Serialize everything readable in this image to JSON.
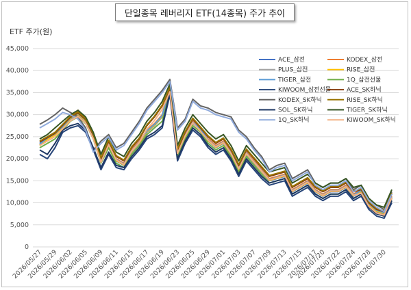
{
  "chart_data": {
    "type": "line",
    "title": "단일종목 레버리지 ETF(14종목) 주가 추이",
    "ylabel": "ETF 주가(원)",
    "xlabel": "",
    "ylim": [
      0,
      45000
    ],
    "yticks": [
      "0",
      "5,000",
      "10,000",
      "15,000",
      "20,000",
      "25,000",
      "30,000",
      "35,000",
      "40,000",
      "45,000"
    ],
    "grid": true,
    "legend_position": "right",
    "x_tick_labels": [
      "2026/05/27",
      "2026/05/29",
      "2026/06/02",
      "2026/06/05",
      "2026/06/09",
      "2026/06/11",
      "2026/06/15",
      "2026/06/17",
      "2026/06/19",
      "2026/06/23",
      "2026/06/25",
      "2026/06/29",
      "2026/07/01",
      "2026/07/03",
      "2026/07/07",
      "2026/07/09",
      "2026/07/13",
      "2026/07/15",
      "2026/07/17",
      "2026/07/20",
      "2026/07/22",
      "2026/07/24",
      "2026/07/28",
      "2026/07/30"
    ],
    "x": [
      "2026/05/27",
      "2026/05/28",
      "2026/05/29",
      "2026/06/01",
      "2026/06/02",
      "2026/06/04",
      "2026/06/05",
      "2026/06/08",
      "2026/06/09",
      "2026/06/10",
      "2026/06/11",
      "2026/06/12",
      "2026/06/15",
      "2026/06/16",
      "2026/06/17",
      "2026/06/18",
      "2026/06/19",
      "2026/06/22",
      "2026/06/23",
      "2026/06/24",
      "2026/06/25",
      "2026/06/26",
      "2026/06/29",
      "2026/06/30",
      "2026/07/01",
      "2026/07/02",
      "2026/07/03",
      "2026/07/06",
      "2026/07/07",
      "2026/07/08",
      "2026/07/09",
      "2026/07/10",
      "2026/07/13",
      "2026/07/14",
      "2026/07/15",
      "2026/07/16",
      "2026/07/17",
      "2026/07/20",
      "2026/07/21",
      "2026/07/22",
      "2026/07/23",
      "2026/07/24",
      "2026/07/27",
      "2026/07/28",
      "2026/07/29",
      "2026/07/30",
      "2026/07/31"
    ],
    "series": [
      {
        "name": "ACE_삼전",
        "color": "#4472c4",
        "values": [
          23500,
          24500,
          25500,
          27000,
          29000,
          30000,
          28500,
          25000,
          19500,
          23000,
          19500,
          18500,
          21500,
          23500,
          26000,
          27500,
          29500,
          36000,
          21000,
          25000,
          28000,
          26500,
          24000,
          22500,
          23500,
          21000,
          17500,
          21000,
          19000,
          17000,
          15000,
          15500,
          16000,
          12500,
          13500,
          14500,
          12500,
          11500,
          12500,
          12500,
          13500,
          11500,
          12500,
          9500,
          8000,
          7500,
          11000
        ]
      },
      {
        "name": "KODEX_삼전",
        "color": "#ed7d31",
        "values": [
          23000,
          24500,
          25500,
          27500,
          29500,
          31000,
          29000,
          25500,
          20000,
          23500,
          20000,
          19000,
          22000,
          24000,
          26500,
          28000,
          30000,
          36500,
          21500,
          25500,
          28500,
          27000,
          24500,
          23000,
          24000,
          21500,
          18000,
          21500,
          19500,
          17500,
          15500,
          16000,
          16500,
          13000,
          14000,
          15000,
          13000,
          12000,
          13000,
          13000,
          14000,
          12000,
          13000,
          10000,
          8500,
          8000,
          11500
        ]
      },
      {
        "name": "PLUS_삼전",
        "color": "#a5a5a5",
        "values": [
          23200,
          24600,
          25600,
          27200,
          29200,
          30200,
          28700,
          25200,
          19700,
          23200,
          19700,
          18700,
          21700,
          23700,
          26200,
          27700,
          29700,
          36200,
          21200,
          25200,
          28200,
          26700,
          24200,
          22700,
          23700,
          21200,
          17700,
          21200,
          19200,
          17200,
          15200,
          15700,
          16200,
          12700,
          13700,
          14700,
          12700,
          11700,
          12700,
          12700,
          13700,
          11700,
          12700,
          9700,
          8200,
          7700,
          11200
        ]
      },
      {
        "name": "RISE_삼전",
        "color": "#ffc000",
        "values": [
          23100,
          24400,
          25400,
          27100,
          29100,
          30100,
          28600,
          25100,
          19600,
          23100,
          19600,
          18600,
          21600,
          23600,
          26100,
          27600,
          29600,
          36100,
          21100,
          25100,
          28100,
          26600,
          24100,
          22600,
          23600,
          21100,
          17600,
          21100,
          19100,
          17100,
          15100,
          15600,
          16100,
          12600,
          13600,
          14600,
          12600,
          11600,
          12600,
          12600,
          13600,
          11600,
          12600,
          9600,
          8100,
          7600,
          11100
        ]
      },
      {
        "name": "TIGER_삼전",
        "color": "#5b9bd5",
        "values": [
          23300,
          24700,
          25700,
          27300,
          29300,
          30300,
          28800,
          25300,
          19800,
          23300,
          19800,
          18800,
          21800,
          23800,
          26300,
          27800,
          29800,
          36300,
          21300,
          25300,
          28300,
          26800,
          24300,
          22800,
          23800,
          21300,
          17800,
          21300,
          19300,
          17300,
          15300,
          15800,
          16300,
          12800,
          13800,
          14800,
          12800,
          11800,
          12800,
          12800,
          13800,
          11800,
          12800,
          9800,
          8300,
          7800,
          11300
        ]
      },
      {
        "name": "1Q_삼전선물",
        "color": "#70ad47",
        "values": [
          22500,
          23500,
          24500,
          26500,
          28500,
          29500,
          28000,
          24500,
          19000,
          22500,
          19000,
          18000,
          21000,
          23000,
          25500,
          27000,
          28500,
          35000,
          20500,
          24500,
          27500,
          26000,
          23500,
          22000,
          23000,
          20500,
          17000,
          20500,
          18500,
          16500,
          14500,
          15000,
          15500,
          12000,
          13000,
          14000,
          12000,
          11000,
          12000,
          12000,
          13000,
          11000,
          12000,
          9000,
          7500,
          7000,
          10500
        ]
      },
      {
        "name": "KIWOOM_삼전선물",
        "color": "#264478",
        "values": [
          21000,
          20000,
          22500,
          26000,
          27000,
          27500,
          26000,
          22000,
          17500,
          21000,
          18000,
          17500,
          20000,
          22000,
          24500,
          25500,
          27000,
          34500,
          19500,
          23500,
          26500,
          25000,
          22500,
          21000,
          22000,
          19500,
          16000,
          19500,
          17500,
          15500,
          14000,
          14500,
          15000,
          11500,
          12500,
          13500,
          11500,
          10500,
          11500,
          11500,
          12500,
          10500,
          11500,
          8500,
          7000,
          6500,
          10000
        ]
      },
      {
        "name": "ACE_SK하닉",
        "color": "#843c0c",
        "values": [
          23800,
          24800,
          25800,
          27600,
          29400,
          30400,
          28900,
          25400,
          20000,
          24000,
          20500,
          19500,
          22500,
          24500,
          27500,
          29500,
          32000,
          36000,
          22000,
          26000,
          29000,
          27000,
          25000,
          23500,
          24500,
          22000,
          18500,
          22000,
          20000,
          18000,
          16000,
          16500,
          17000,
          13500,
          14500,
          15500,
          13500,
          12500,
          13500,
          13500,
          14500,
          12500,
          13000,
          10000,
          8500,
          8000,
          12000
        ]
      },
      {
        "name": "KODEX_SK하닉",
        "color": "#636363",
        "values": [
          27800,
          28800,
          30000,
          31500,
          30500,
          29500,
          27000,
          22000,
          24000,
          25500,
          22500,
          23500,
          26000,
          28500,
          31500,
          33500,
          35500,
          38000,
          27000,
          29000,
          33500,
          32000,
          31500,
          30500,
          30000,
          29500,
          26500,
          25000,
          22500,
          20500,
          17500,
          18500,
          19000,
          15500,
          16500,
          17500,
          14500,
          13500,
          14500,
          14500,
          15500,
          13000,
          14000,
          11000,
          9500,
          8500,
          12500
        ]
      },
      {
        "name": "RISE_SK하닉",
        "color": "#997300",
        "values": [
          24000,
          25000,
          26000,
          27800,
          29600,
          30600,
          29100,
          25600,
          20200,
          24200,
          20700,
          19700,
          22700,
          24700,
          27700,
          29700,
          32200,
          36200,
          22200,
          26200,
          29200,
          27200,
          25200,
          23700,
          24700,
          22200,
          18700,
          22200,
          20200,
          18200,
          16200,
          16700,
          17200,
          13700,
          14700,
          15700,
          13700,
          12700,
          13700,
          13700,
          14700,
          12700,
          13200,
          10200,
          8700,
          8200,
          12200
        ]
      },
      {
        "name": "SOL_SK하닉",
        "color": "#1f3864",
        "values": [
          22000,
          21000,
          23500,
          26500,
          27500,
          28000,
          26500,
          22500,
          18000,
          21500,
          18500,
          18000,
          20500,
          22500,
          25000,
          26000,
          27500,
          35000,
          20000,
          24000,
          27000,
          25500,
          23000,
          21500,
          22500,
          20000,
          16500,
          20000,
          18000,
          16000,
          14500,
          15000,
          15500,
          12000,
          13000,
          14000,
          12000,
          11000,
          12000,
          12000,
          13000,
          11000,
          12000,
          9000,
          7500,
          7000,
          10500
        ]
      },
      {
        "name": "TIGER_SK하닉",
        "color": "#375623",
        "values": [
          24500,
          25500,
          27000,
          28500,
          30000,
          31000,
          29500,
          26000,
          21000,
          25000,
          21500,
          20500,
          23500,
          25500,
          28500,
          30500,
          33000,
          37000,
          23000,
          27000,
          30000,
          28000,
          26000,
          24500,
          25500,
          23000,
          19500,
          23000,
          21000,
          19000,
          17000,
          17500,
          18000,
          14500,
          15500,
          16500,
          14500,
          13500,
          14500,
          14500,
          15500,
          13500,
          14000,
          11000,
          9500,
          9000,
          13000
        ]
      },
      {
        "name": "1Q_SK하닉",
        "color": "#8faadc",
        "values": [
          27000,
          28000,
          29000,
          30500,
          30000,
          29000,
          26500,
          21500,
          23500,
          25000,
          22000,
          23000,
          25500,
          28000,
          31000,
          33000,
          35000,
          37500,
          26500,
          28500,
          33000,
          31500,
          31000,
          30000,
          29500,
          29000,
          26000,
          24500,
          22000,
          20000,
          17000,
          18000,
          18500,
          15000,
          16000,
          17000,
          14000,
          13000,
          14000,
          14000,
          15000,
          12500,
          13500,
          10500,
          9000,
          8000,
          12000
        ]
      },
      {
        "name": "KIWOOM_SK하닉",
        "color": "#f4b183",
        "values": [
          23000,
          24000,
          25000,
          26800,
          28600,
          29600,
          28100,
          24600,
          19200,
          23200,
          19700,
          18700,
          21700,
          23700,
          26700,
          28700,
          31200,
          35200,
          21200,
          25200,
          28200,
          26200,
          24200,
          22700,
          23700,
          21200,
          17700,
          21200,
          19200,
          17200,
          15200,
          15700,
          16200,
          12700,
          13700,
          14700,
          12700,
          11700,
          12700,
          12700,
          13700,
          11700,
          12200,
          9200,
          7700,
          7200,
          11200
        ]
      }
    ]
  }
}
